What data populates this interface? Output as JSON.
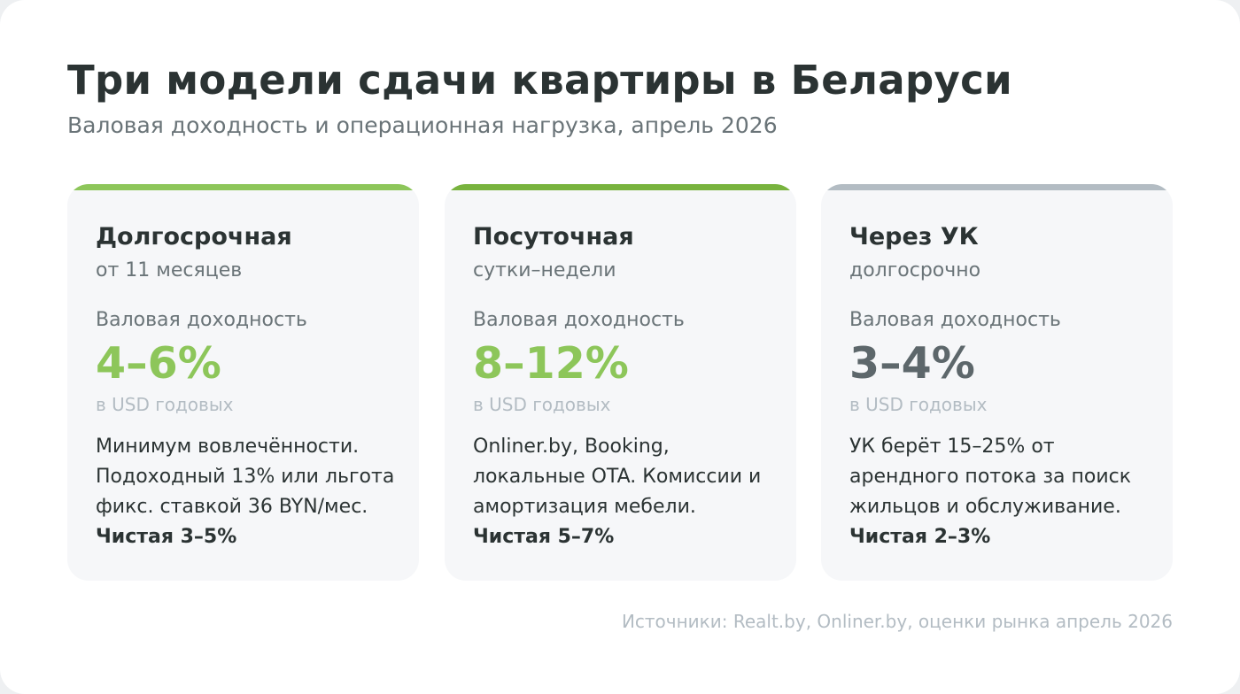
{
  "header": {
    "title": "Три модели сдачи квартиры в Беларуси",
    "subtitle": "Валовая доходность и операционная нагрузка, апрель 2026"
  },
  "cards": [
    {
      "name": "Долгосрочная",
      "period": "от 11 месяцев",
      "metric_label": "Валовая доходность",
      "value": "4–6%",
      "unit": "в USD годовых",
      "description": "Минимум вовлечённости. Подоходный 13% или льгота фикс. ставкой 36 BYN/мес.",
      "net": "Чистая 3–5%",
      "accent_color": "#8dc65a",
      "value_color": "#8dc65a"
    },
    {
      "name": "Посуточная",
      "period": "сутки–недели",
      "metric_label": "Валовая доходность",
      "value": "8–12%",
      "unit": "в USD годовых",
      "description": "Onliner.by, Booking, локальные OTA. Комиссии и амортизация мебели.",
      "net": "Чистая 5–7%",
      "accent_color": "#78b33e",
      "value_color": "#8dc65a"
    },
    {
      "name": "Через УК",
      "period": "долгосрочно",
      "metric_label": "Валовая доходность",
      "value": "3–4%",
      "unit": "в USD годовых",
      "description": "УК берёт 15–25% от арендного потока за поиск жильцов и обслуживание.",
      "net": "Чистая 2–3%",
      "accent_color": "#b3bcc3",
      "value_color": "#5d676b"
    }
  ],
  "footer": {
    "sources": "Источники: Realt.by, Onliner.by, оценки рынка апрель 2026"
  }
}
